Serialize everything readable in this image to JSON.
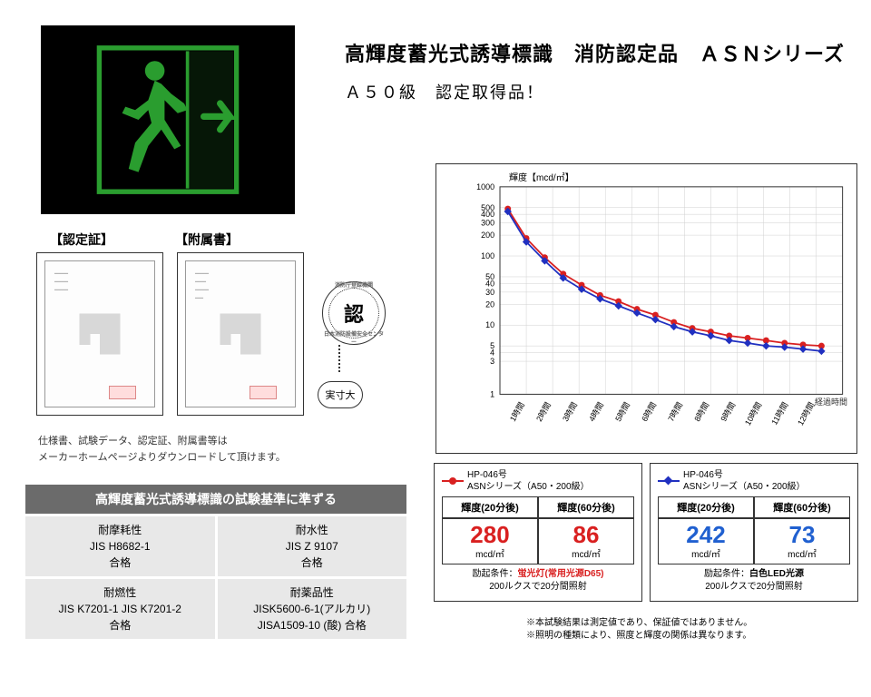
{
  "title": "高輝度蓄光式誘導標識　消防認定品　ＡＳＮシリーズ",
  "subtitle": "Ａ５０級　認定取得品！",
  "certLabels": {
    "cert": "【認定証】",
    "annex": "【附属書】"
  },
  "seal": {
    "char": "認",
    "size": "実寸大"
  },
  "downloadNote1": "仕様書、試験データ、認定証、附属書等は",
  "downloadNote2": "メーカーホームページよりダウンロードして頂けます。",
  "standards": {
    "header": "高輝度蓄光式誘導標識の試験基準に準ずる",
    "cells": [
      {
        "name": "耐摩耗性",
        "std": "JIS H8682-1",
        "res": "合格"
      },
      {
        "name": "耐水性",
        "std": "JIS Z 9107",
        "res": "合格"
      },
      {
        "name": "耐燃性",
        "std": "JIS K7201-1 JIS K7201-2",
        "res": "合格"
      },
      {
        "name": "耐薬品性",
        "std": "JISK5600-6-1(アルカリ)",
        "res": "JISA1509-10 (酸) 合格"
      }
    ]
  },
  "chart": {
    "yTitle": "輝度【mcd/㎡】",
    "xTitle": "経過時間",
    "yTicks": [
      1000,
      500,
      400,
      300,
      200,
      100,
      50,
      40,
      30,
      20,
      10,
      5,
      4,
      3,
      1
    ],
    "xTicks": [
      "1時間",
      "2時間",
      "3時間",
      "4時間",
      "5時間",
      "6時間",
      "7時間",
      "8時間",
      "9時間",
      "10時間",
      "11時間",
      "12時間"
    ],
    "series": [
      {
        "name": "red",
        "color": "#d92020",
        "shape": "circle",
        "vals": [
          480,
          180,
          95,
          55,
          38,
          27,
          22,
          17,
          14,
          11,
          9,
          8,
          7,
          6.5,
          6,
          5.5,
          5.2,
          5
        ]
      },
      {
        "name": "blue",
        "color": "#2030c0",
        "shape": "diamond",
        "vals": [
          440,
          160,
          85,
          48,
          33,
          24,
          19,
          15,
          12,
          9.5,
          8,
          7,
          6,
          5.5,
          5,
          4.8,
          4.5,
          4.2
        ]
      }
    ]
  },
  "results": [
    {
      "legend": "HP-046号\nASNシリーズ（A50・200級）",
      "color": "red",
      "h20": "輝度(20分後)",
      "h60": "輝度(60分後)",
      "v20": "280",
      "v60": "86",
      "unit": "mcd/㎡",
      "cond": "励起条件：",
      "src": "蛍光灯(常用光源D65)",
      "srcClass": "hl-red",
      "lux": "200ルクスで20分間照射"
    },
    {
      "legend": "HP-046号\nASNシリーズ（A50・200級）",
      "color": "blue",
      "h20": "輝度(20分後)",
      "h60": "輝度(60分後)",
      "v20": "242",
      "v60": "73",
      "unit": "mcd/㎡",
      "cond": "励起条件：",
      "src": "白色LED光源",
      "srcClass": "hl-blk",
      "lux": "200ルクスで20分間照射"
    }
  ],
  "footnote1": "※本試験結果は測定値であり、保証値ではありません。",
  "footnote2": "※照明の種類により、照度と輝度の関係は異なります。",
  "colors": {
    "green": "#2a9d2f",
    "headerBg": "#6b6b6b",
    "cellBg": "#e8e8e8"
  }
}
